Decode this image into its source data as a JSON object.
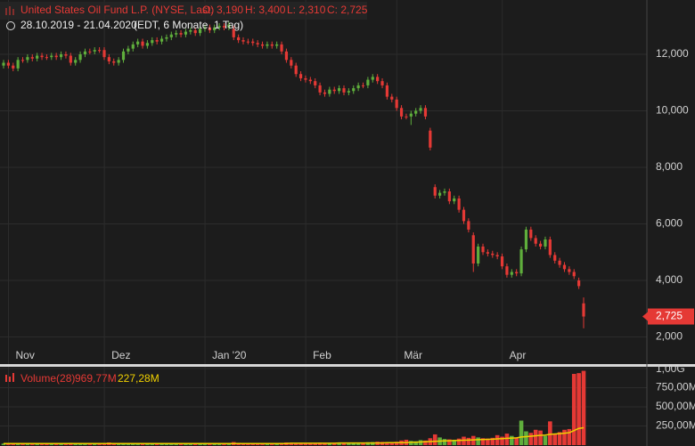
{
  "header": {
    "title": "United States Oil Fund L.P. (NYSE, Last)",
    "ohlc": [
      "O: 3,190",
      "H: 3,400",
      "L: 2,310",
      "C: 2,725"
    ],
    "range": "28.10.2019 - 21.04.2020",
    "period": "(EDT, 6 Monate, 1 Tag)"
  },
  "chart_data": [
    {
      "type": "candlestick",
      "up_color": "#5fae3c",
      "down_color": "#e53935",
      "grid": true,
      "categories": [
        null,
        null,
        null,
        null,
        "Nov",
        null,
        null,
        null,
        null,
        null,
        null,
        null,
        null,
        null,
        null,
        null,
        null,
        null,
        null,
        null,
        null,
        null,
        null,
        null,
        "Dez",
        null,
        null,
        null,
        null,
        null,
        null,
        null,
        null,
        null,
        null,
        null,
        null,
        null,
        null,
        null,
        null,
        null,
        null,
        null,
        null,
        "Jan '20",
        null,
        null,
        null,
        null,
        null,
        null,
        null,
        null,
        null,
        null,
        null,
        null,
        null,
        null,
        null,
        null,
        null,
        null,
        null,
        null,
        "Feb",
        null,
        null,
        null,
        null,
        null,
        null,
        null,
        null,
        null,
        null,
        null,
        null,
        null,
        null,
        null,
        null,
        null,
        null,
        "Mär",
        null,
        null,
        null,
        null,
        null,
        null,
        null,
        null,
        null,
        null,
        null,
        null,
        null,
        null,
        null,
        null,
        null,
        null,
        null,
        null,
        null,
        "Apr",
        null,
        null,
        null,
        null,
        null,
        null,
        null,
        null,
        null,
        null,
        null,
        null,
        null,
        null
      ],
      "open": [
        11.6,
        11.7,
        11.6,
        11.5,
        11.8,
        11.8,
        11.9,
        11.85,
        11.95,
        11.9,
        11.9,
        11.95,
        11.9,
        12.0,
        11.95,
        11.7,
        11.8,
        12.0,
        12.1,
        12.1,
        12.15,
        12.15,
        11.9,
        11.75,
        11.7,
        11.8,
        12.1,
        12.2,
        12.35,
        12.45,
        12.3,
        12.4,
        12.5,
        12.45,
        12.55,
        12.6,
        12.7,
        12.75,
        12.7,
        12.8,
        12.85,
        12.75,
        12.9,
        12.95,
        12.85,
        12.95,
        13.0,
        12.95,
        12.9,
        12.6,
        12.5,
        12.45,
        12.45,
        12.4,
        12.35,
        12.3,
        12.35,
        12.3,
        12.35,
        12.1,
        11.8,
        11.6,
        11.3,
        11.15,
        11.1,
        11.05,
        10.9,
        10.65,
        10.6,
        10.75,
        10.7,
        10.8,
        10.65,
        10.7,
        10.8,
        10.9,
        10.9,
        11.1,
        11.2,
        11.05,
        10.9,
        10.5,
        10.4,
        10.1,
        9.8,
        9.8,
        9.9,
        10.0,
        10.1,
        9.3,
        7.3,
        7.0,
        7.1,
        7.15,
        6.8,
        6.9,
        6.5,
        6.1,
        5.6,
        4.6,
        5.2,
        5.0,
        4.95,
        4.9,
        4.85,
        4.5,
        4.2,
        4.3,
        4.25,
        5.1,
        5.8,
        5.5,
        5.3,
        5.2,
        5.45,
        4.9,
        4.7,
        4.55,
        4.4,
        4.3,
        4.0,
        3.19
      ],
      "high": [
        11.8,
        11.8,
        11.7,
        11.9,
        11.9,
        12.0,
        12.0,
        12.05,
        12.05,
        12.0,
        12.05,
        12.05,
        12.1,
        12.1,
        12.05,
        11.9,
        12.1,
        12.2,
        12.2,
        12.25,
        12.25,
        12.25,
        12.0,
        11.85,
        11.9,
        12.2,
        12.3,
        12.45,
        12.55,
        12.55,
        12.5,
        12.6,
        12.6,
        12.65,
        12.7,
        12.8,
        12.85,
        12.85,
        12.9,
        12.95,
        12.95,
        13.0,
        13.05,
        13.05,
        13.05,
        13.1,
        13.1,
        13.15,
        13.0,
        12.7,
        12.6,
        12.55,
        12.55,
        12.5,
        12.45,
        12.45,
        12.45,
        12.45,
        12.45,
        12.2,
        11.9,
        11.7,
        11.4,
        11.25,
        11.2,
        11.15,
        11.0,
        10.75,
        10.85,
        10.85,
        10.9,
        10.9,
        10.8,
        10.9,
        11.0,
        11.0,
        11.2,
        11.3,
        11.3,
        11.15,
        11.0,
        10.6,
        10.5,
        10.2,
        9.9,
        10.0,
        10.1,
        10.2,
        10.2,
        9.4,
        7.4,
        7.2,
        7.25,
        7.25,
        7.0,
        7.0,
        6.6,
        6.2,
        5.7,
        5.3,
        5.3,
        5.1,
        5.05,
        5.0,
        4.95,
        4.6,
        4.4,
        4.4,
        5.2,
        5.9,
        5.9,
        5.6,
        5.4,
        5.55,
        5.55,
        5.0,
        4.8,
        4.65,
        4.5,
        4.4,
        4.1,
        3.4
      ],
      "low": [
        11.5,
        11.5,
        11.4,
        11.4,
        11.7,
        11.7,
        11.75,
        11.75,
        11.8,
        11.8,
        11.8,
        11.8,
        11.8,
        11.85,
        11.6,
        11.6,
        11.7,
        11.9,
        12.0,
        12.0,
        12.05,
        11.8,
        11.65,
        11.6,
        11.6,
        11.7,
        12.0,
        12.1,
        12.25,
        12.2,
        12.2,
        12.3,
        12.35,
        12.35,
        12.45,
        12.5,
        12.6,
        12.6,
        12.6,
        12.7,
        12.65,
        12.65,
        12.8,
        12.75,
        12.75,
        12.85,
        12.85,
        12.85,
        12.5,
        12.4,
        12.35,
        12.35,
        12.3,
        12.25,
        12.2,
        12.2,
        12.2,
        12.2,
        12.0,
        11.7,
        11.5,
        11.2,
        11.05,
        11.0,
        10.95,
        10.8,
        10.55,
        10.5,
        10.5,
        10.6,
        10.6,
        10.55,
        10.55,
        10.6,
        10.7,
        10.8,
        10.8,
        11.0,
        10.95,
        10.8,
        10.4,
        10.3,
        10.0,
        9.7,
        9.7,
        9.5,
        9.8,
        9.9,
        9.7,
        8.6,
        6.9,
        6.9,
        7.0,
        6.7,
        6.7,
        6.4,
        6.0,
        5.7,
        4.3,
        4.5,
        4.9,
        4.85,
        4.8,
        4.75,
        4.4,
        4.1,
        4.1,
        4.15,
        4.15,
        5.0,
        5.4,
        5.2,
        5.1,
        5.1,
        4.8,
        4.6,
        4.45,
        4.3,
        4.2,
        4.05,
        3.7,
        2.31
      ],
      "close": [
        11.7,
        11.6,
        11.5,
        11.8,
        11.8,
        11.9,
        11.85,
        11.95,
        11.9,
        11.9,
        11.95,
        11.9,
        12.0,
        11.95,
        11.7,
        11.8,
        12.0,
        12.1,
        12.1,
        12.15,
        12.15,
        11.9,
        11.75,
        11.7,
        11.8,
        12.1,
        12.2,
        12.35,
        12.45,
        12.3,
        12.4,
        12.5,
        12.45,
        12.55,
        12.6,
        12.7,
        12.75,
        12.7,
        12.8,
        12.85,
        12.75,
        12.9,
        12.95,
        12.85,
        12.95,
        13.0,
        12.95,
        13.05,
        12.6,
        12.5,
        12.45,
        12.45,
        12.4,
        12.35,
        12.3,
        12.35,
        12.3,
        12.35,
        12.1,
        11.8,
        11.6,
        11.3,
        11.15,
        11.1,
        11.05,
        10.9,
        10.65,
        10.6,
        10.75,
        10.7,
        10.8,
        10.65,
        10.7,
        10.8,
        10.9,
        10.9,
        11.1,
        11.2,
        11.05,
        10.9,
        10.5,
        10.4,
        10.1,
        9.8,
        9.8,
        9.9,
        10.0,
        10.1,
        9.8,
        8.7,
        7.0,
        7.1,
        7.15,
        6.8,
        6.9,
        6.5,
        6.1,
        5.8,
        4.6,
        5.2,
        5.0,
        4.95,
        4.9,
        4.85,
        4.5,
        4.2,
        4.3,
        4.25,
        5.1,
        5.8,
        5.5,
        5.3,
        5.2,
        5.45,
        4.9,
        4.7,
        4.55,
        4.4,
        4.3,
        4.15,
        3.8,
        2.725
      ],
      "last_label": "2,725",
      "ylim": [
        1.01,
        13.92
      ],
      "yticks": [
        {
          "value": 2,
          "label": "2,000"
        },
        {
          "value": 4,
          "label": "4,000"
        },
        {
          "value": 6,
          "label": "6,000"
        },
        {
          "value": 8,
          "label": "8,000"
        },
        {
          "value": 10,
          "label": "10,000"
        },
        {
          "value": 12,
          "label": "12,000"
        }
      ]
    },
    {
      "type": "bar",
      "title": "Volume(28)",
      "value_label": "969,77M",
      "average_label": "227,28M",
      "average_color": "#f0d000",
      "values": [
        20,
        25,
        18,
        22,
        20,
        24,
        19,
        21,
        23,
        20,
        22,
        18,
        25,
        20,
        30,
        22,
        20,
        19,
        21,
        24,
        18,
        20,
        35,
        22,
        20,
        28,
        24,
        20,
        22,
        18,
        21,
        20,
        19,
        23,
        20,
        18,
        17,
        22,
        19,
        20,
        18,
        21,
        23,
        20,
        22,
        25,
        28,
        22,
        40,
        30,
        26,
        24,
        22,
        25,
        23,
        24,
        26,
        25,
        30,
        35,
        32,
        28,
        30,
        26,
        27,
        29,
        33,
        30,
        28,
        27,
        26,
        29,
        30,
        28,
        32,
        35,
        38,
        40,
        45,
        42,
        40,
        38,
        44,
        60,
        70,
        55,
        50,
        65,
        60,
        90,
        140,
        100,
        80,
        75,
        70,
        85,
        110,
        95,
        120,
        100,
        90,
        85,
        95,
        130,
        110,
        150,
        120,
        100,
        320,
        180,
        160,
        200,
        190,
        120,
        310,
        150,
        170,
        200,
        210,
        930,
        940,
        969.77
      ],
      "average": [
        21,
        21,
        21,
        21,
        21,
        21,
        21,
        21,
        21,
        21,
        21,
        21,
        21,
        21,
        21,
        21,
        21,
        21,
        21,
        21,
        21,
        21,
        21,
        21,
        21,
        21,
        21,
        21,
        21,
        21,
        21,
        21,
        21,
        21,
        21,
        21,
        21,
        21,
        21,
        21,
        21,
        21,
        21,
        21,
        21,
        21,
        21,
        21,
        21,
        21,
        21,
        21,
        21,
        21,
        21,
        21,
        21,
        21,
        21,
        21,
        25,
        25,
        25,
        25,
        25,
        25,
        25,
        25,
        25,
        25,
        28,
        28,
        28,
        28,
        28,
        28,
        28,
        28,
        28,
        28,
        32,
        32,
        32,
        32,
        32,
        36,
        38,
        40,
        43,
        46,
        50,
        53,
        55,
        57,
        59,
        61,
        64,
        66,
        69,
        71,
        73,
        75,
        77,
        81,
        84,
        89,
        92,
        95,
        106,
        111,
        116,
        122,
        128,
        131,
        141,
        145,
        150,
        156,
        162,
        190,
        218,
        227.28
      ],
      "ylim": [
        0,
        1023
      ],
      "yticks": [
        {
          "value": 250,
          "label": "250,00M"
        },
        {
          "value": 500,
          "label": "500,00M"
        },
        {
          "value": 750,
          "label": "750,00M"
        },
        {
          "value": 1000,
          "label": "1,00G"
        }
      ]
    }
  ]
}
